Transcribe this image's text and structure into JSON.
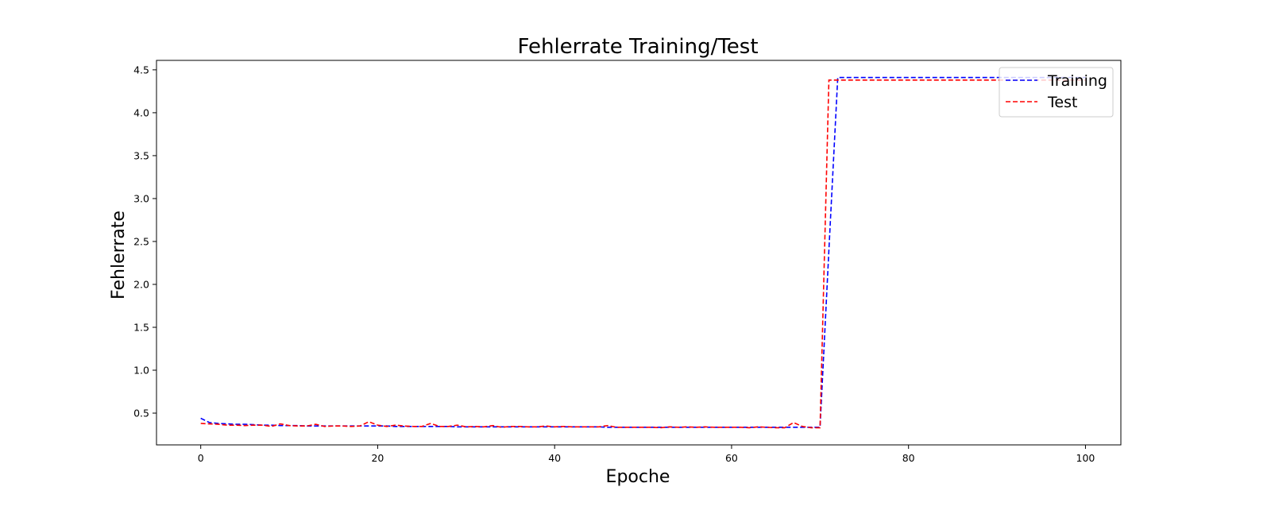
{
  "chart_data": {
    "type": "line",
    "title": "Fehlerrate Training/Test",
    "xlabel": "Epoche",
    "ylabel": "Fehlerrate",
    "xlim": [
      -5,
      104
    ],
    "ylim": [
      0.13,
      4.61
    ],
    "xticks": [
      0,
      20,
      40,
      60,
      80,
      100
    ],
    "yticks": [
      0.5,
      1.0,
      1.5,
      2.0,
      2.5,
      3.0,
      3.5,
      4.0,
      4.5
    ],
    "grid": false,
    "legend_position": "top-right",
    "x": [
      0,
      1,
      2,
      3,
      4,
      5,
      6,
      7,
      8,
      9,
      10,
      11,
      12,
      13,
      14,
      15,
      16,
      17,
      18,
      19,
      20,
      21,
      22,
      23,
      24,
      25,
      26,
      27,
      28,
      29,
      30,
      31,
      32,
      33,
      34,
      35,
      36,
      37,
      38,
      39,
      40,
      41,
      42,
      43,
      44,
      45,
      46,
      47,
      48,
      49,
      50,
      51,
      52,
      53,
      54,
      55,
      56,
      57,
      58,
      59,
      60,
      61,
      62,
      63,
      64,
      65,
      66,
      67,
      68,
      69,
      70,
      71,
      72,
      73,
      74,
      75,
      76,
      77,
      78,
      79,
      80,
      81,
      82,
      83,
      84,
      85,
      86,
      87,
      88,
      89,
      90,
      91,
      92,
      93,
      94,
      95,
      96,
      97,
      98,
      99,
      100
    ],
    "series": [
      {
        "name": "Training",
        "color": "#0000ff",
        "style": "dashed",
        "values": [
          0.44,
          0.39,
          0.38,
          0.375,
          0.37,
          0.37,
          0.365,
          0.36,
          0.36,
          0.355,
          0.355,
          0.355,
          0.35,
          0.35,
          0.35,
          0.35,
          0.35,
          0.35,
          0.35,
          0.35,
          0.35,
          0.35,
          0.345,
          0.345,
          0.345,
          0.345,
          0.345,
          0.345,
          0.345,
          0.34,
          0.34,
          0.34,
          0.34,
          0.34,
          0.34,
          0.34,
          0.34,
          0.34,
          0.34,
          0.34,
          0.34,
          0.34,
          0.34,
          0.34,
          0.34,
          0.34,
          0.335,
          0.335,
          0.335,
          0.335,
          0.335,
          0.335,
          0.335,
          0.335,
          0.335,
          0.335,
          0.335,
          0.335,
          0.335,
          0.335,
          0.335,
          0.335,
          0.335,
          0.335,
          0.335,
          0.335,
          0.335,
          0.335,
          0.335,
          0.335,
          0.335,
          2.4,
          4.41,
          4.41,
          4.41,
          4.41,
          4.41,
          4.41,
          4.41,
          4.41,
          4.41,
          4.41,
          4.41,
          4.41,
          4.41,
          4.41,
          4.41,
          4.41,
          4.41,
          4.41,
          4.41,
          4.41,
          4.41,
          4.41,
          4.41,
          4.41,
          4.41,
          4.41,
          4.41,
          4.41,
          4.41
        ]
      },
      {
        "name": "Test",
        "color": "#ff0000",
        "style": "dashed",
        "values": [
          0.38,
          0.375,
          0.37,
          0.36,
          0.36,
          0.355,
          0.36,
          0.36,
          0.345,
          0.375,
          0.355,
          0.35,
          0.35,
          0.37,
          0.345,
          0.35,
          0.35,
          0.345,
          0.35,
          0.4,
          0.36,
          0.345,
          0.36,
          0.35,
          0.345,
          0.345,
          0.38,
          0.345,
          0.345,
          0.36,
          0.34,
          0.345,
          0.34,
          0.355,
          0.335,
          0.345,
          0.345,
          0.34,
          0.34,
          0.35,
          0.34,
          0.345,
          0.34,
          0.34,
          0.34,
          0.34,
          0.355,
          0.335,
          0.335,
          0.335,
          0.335,
          0.335,
          0.33,
          0.34,
          0.335,
          0.34,
          0.335,
          0.34,
          0.335,
          0.335,
          0.335,
          0.335,
          0.33,
          0.34,
          0.335,
          0.33,
          0.33,
          0.39,
          0.345,
          0.33,
          0.33,
          4.38,
          4.38,
          4.38,
          4.38,
          4.38,
          4.38,
          4.38,
          4.38,
          4.38,
          4.38,
          4.38,
          4.38,
          4.38,
          4.38,
          4.38,
          4.38,
          4.38,
          4.38,
          4.38,
          4.38,
          4.38,
          4.38,
          4.38,
          4.38,
          4.38,
          4.38,
          4.38,
          4.38,
          4.38,
          4.38
        ]
      }
    ]
  }
}
